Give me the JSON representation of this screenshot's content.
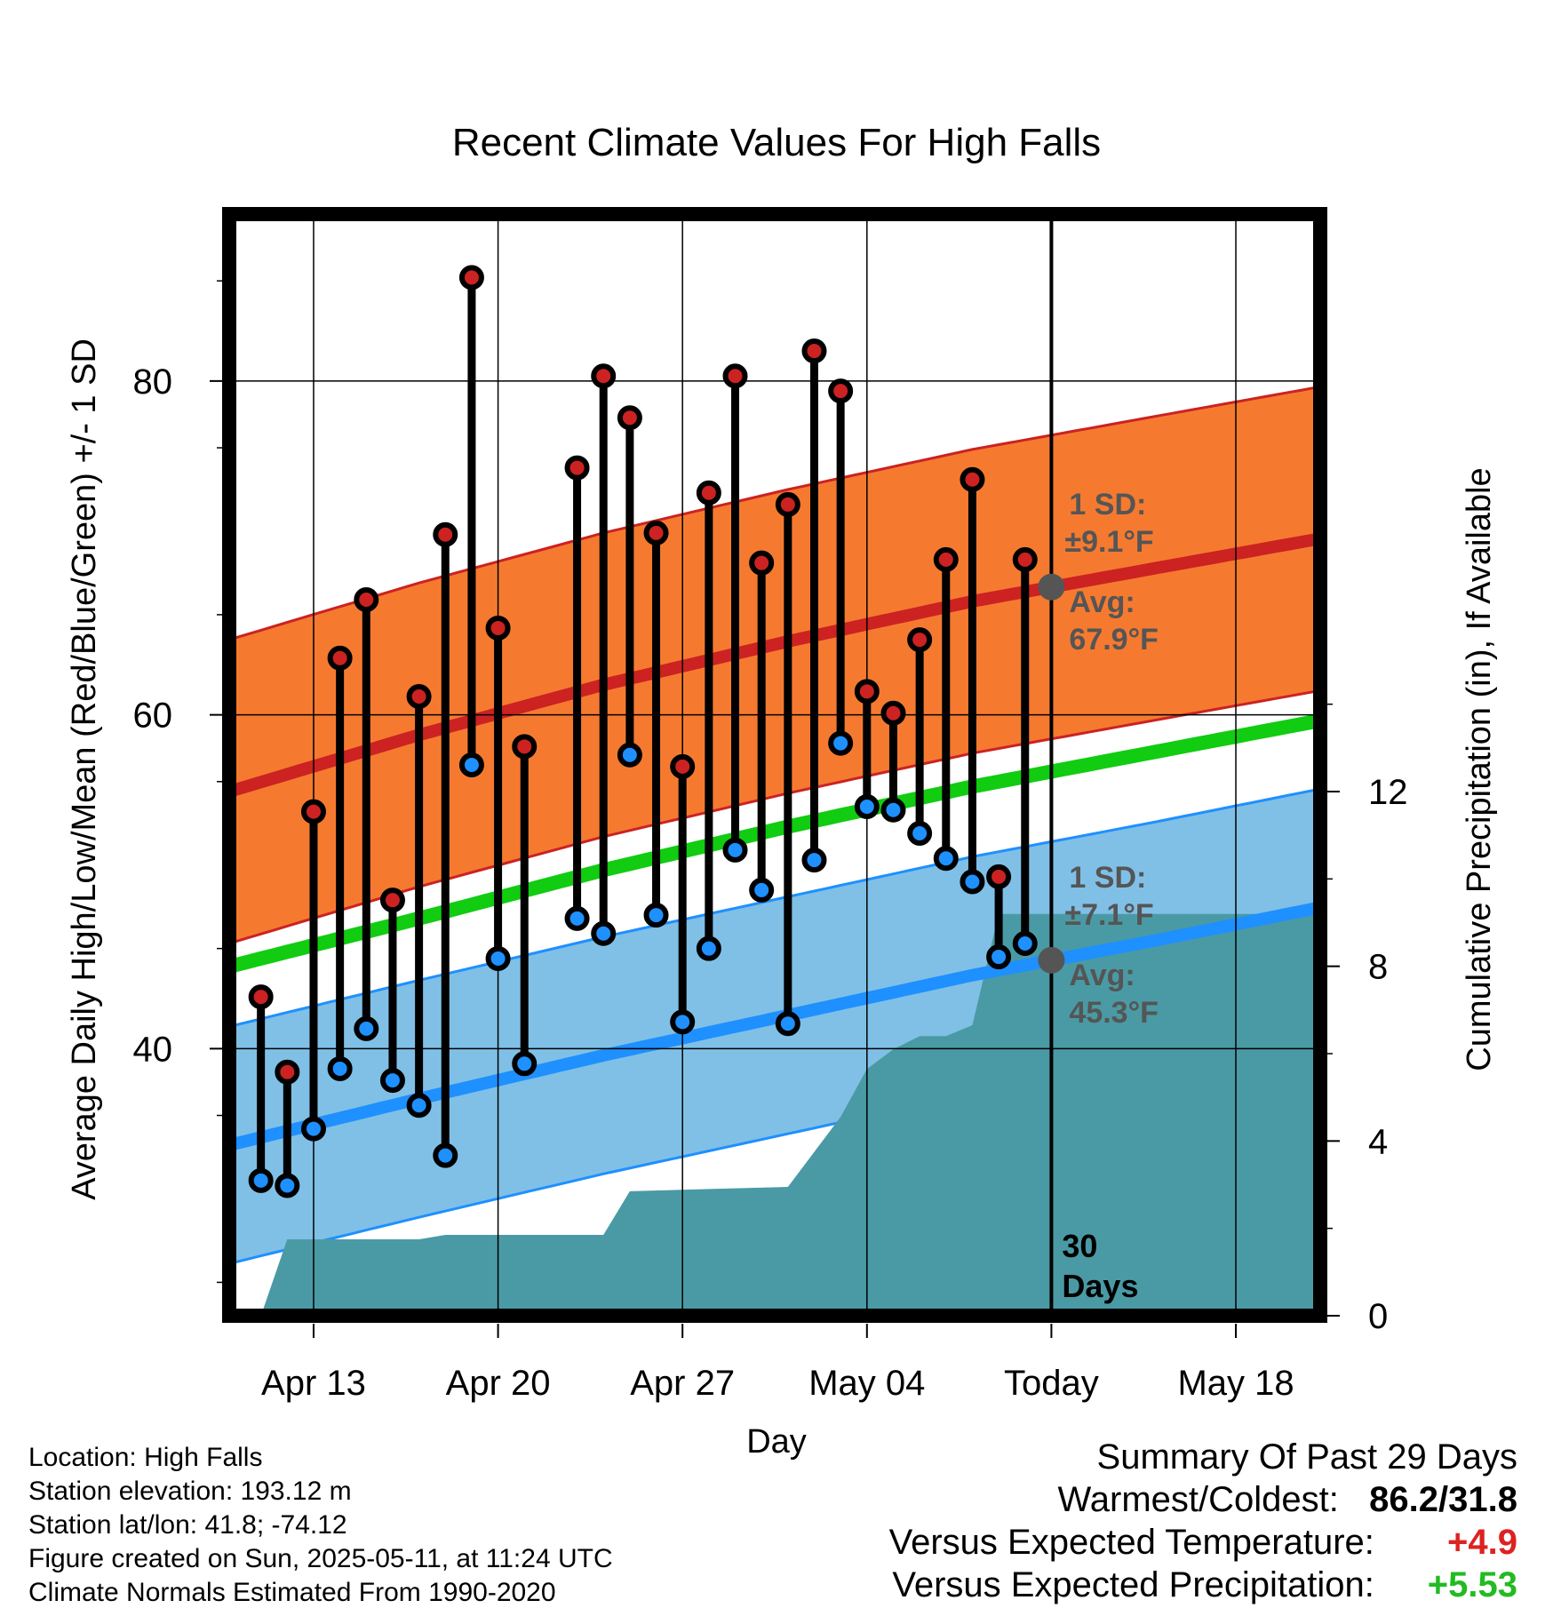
{
  "chart_data": {
    "type": "line",
    "title": "Recent Climate Values For High Falls",
    "xlabel": "Day",
    "ylabel": "Average Daily High/Low/Mean (Red/Blue/Green) +/- 1 SD",
    "y2label": "Cumulative Precipitation (in), If Available",
    "x_ticks": [
      "Apr 13",
      "Apr 20",
      "Apr 27",
      "May 04",
      "Today",
      "May 18"
    ],
    "x_range": [
      "2025-04-10",
      "2025-05-21"
    ],
    "ylim": [
      24,
      90
    ],
    "y_ticks": [
      40,
      60,
      80
    ],
    "y2lim": [
      0,
      20
    ],
    "y2_ticks": [
      0,
      4,
      8,
      12
    ],
    "grid": true,
    "today": "2025-05-11",
    "period_label": [
      "30",
      "Days"
    ],
    "normals": {
      "dates": [
        "2025-04-10",
        "2025-04-17",
        "2025-04-24",
        "2025-05-01",
        "2025-05-08",
        "2025-05-15",
        "2025-05-21"
      ],
      "high_mean": [
        55.5,
        58.8,
        61.8,
        64.4,
        66.8,
        68.8,
        70.5
      ],
      "high_sd": 9.1,
      "low_mean": [
        34.3,
        37.0,
        39.6,
        42.0,
        44.4,
        46.5,
        48.4
      ],
      "low_sd": 7.1,
      "daily_mean": [
        45.0,
        47.8,
        50.7,
        53.3,
        55.7,
        57.8,
        59.6
      ]
    },
    "annotations": {
      "high_sd": "±9.1°F",
      "high_avg": "67.9°F",
      "low_sd": "±7.1°F",
      "low_avg": "45.3°F",
      "sd_label": "1 SD:",
      "avg_label": "Avg:"
    },
    "series": [
      {
        "name": "High",
        "dates": [
          "2025-04-11",
          "2025-04-12",
          "2025-04-13",
          "2025-04-14",
          "2025-04-15",
          "2025-04-16",
          "2025-04-17",
          "2025-04-18",
          "2025-04-19",
          "2025-04-20",
          "2025-04-21",
          "2025-04-23",
          "2025-04-24",
          "2025-04-25",
          "2025-04-26",
          "2025-04-27",
          "2025-04-28",
          "2025-04-29",
          "2025-04-30",
          "2025-05-01",
          "2025-05-02",
          "2025-05-03",
          "2025-05-04",
          "2025-05-05",
          "2025-05-06",
          "2025-05-07",
          "2025-05-08",
          "2025-05-09",
          "2025-05-10"
        ],
        "values": [
          43.1,
          38.6,
          54.2,
          63.4,
          66.9,
          48.9,
          61.1,
          70.8,
          86.2,
          65.2,
          58.1,
          74.8,
          80.3,
          77.8,
          70.9,
          56.9,
          73.3,
          80.3,
          69.1,
          72.6,
          81.8,
          79.4,
          61.4,
          60.1,
          64.5,
          69.3,
          74.1,
          50.3,
          69.3
        ]
      },
      {
        "name": "Low",
        "dates": [
          "2025-04-11",
          "2025-04-12",
          "2025-04-13",
          "2025-04-14",
          "2025-04-15",
          "2025-04-16",
          "2025-04-17",
          "2025-04-18",
          "2025-04-19",
          "2025-04-20",
          "2025-04-21",
          "2025-04-23",
          "2025-04-24",
          "2025-04-25",
          "2025-04-26",
          "2025-04-27",
          "2025-04-28",
          "2025-04-29",
          "2025-04-30",
          "2025-05-01",
          "2025-05-02",
          "2025-05-03",
          "2025-05-04",
          "2025-05-05",
          "2025-05-06",
          "2025-05-07",
          "2025-05-08",
          "2025-05-09",
          "2025-05-10"
        ],
        "values": [
          32.1,
          31.8,
          35.2,
          38.8,
          41.2,
          38.1,
          36.6,
          33.6,
          57.0,
          45.4,
          39.1,
          47.8,
          46.9,
          57.6,
          48.0,
          41.6,
          46.0,
          51.9,
          49.5,
          41.5,
          51.3,
          58.3,
          54.5,
          54.3,
          52.9,
          51.4,
          50.0,
          45.5,
          46.3
        ]
      },
      {
        "name": "Cumulative Precipitation",
        "dates": [
          "2025-04-11",
          "2025-04-12",
          "2025-04-17",
          "2025-04-18",
          "2025-04-24",
          "2025-04-25",
          "2025-04-28",
          "2025-05-01",
          "2025-05-02",
          "2025-05-03",
          "2025-05-04",
          "2025-05-05",
          "2025-05-06",
          "2025-05-07",
          "2025-05-08",
          "2025-05-09",
          "2025-05-10",
          "2025-05-11",
          "2025-05-21"
        ],
        "values": [
          0.0,
          1.75,
          1.75,
          1.85,
          1.85,
          2.85,
          2.9,
          2.95,
          3.75,
          4.55,
          5.65,
          6.1,
          6.4,
          6.4,
          6.65,
          9.2,
          9.2,
          9.2,
          9.2
        ]
      }
    ]
  },
  "info": {
    "location": "Location: High Falls",
    "elevation": "Station elevation: 193.12 m",
    "latlon": "Station lat/lon: 41.8; -74.12",
    "created": "Figure created on Sun, 2025-05-11, at 11:24 UTC",
    "normals": "Climate Normals Estimated From 1990-2020"
  },
  "summary": {
    "title": "Summary Of Past 29 Days",
    "warm_cold_label": "Warmest/Coldest:",
    "warm_cold_value": "86.2/31.8",
    "temp_label": "Versus Expected Temperature:",
    "temp_value": "+4.9",
    "precip_label": "Versus Expected Precipitation:",
    "precip_value": "+5.53"
  },
  "colors": {
    "high_band": "#f57a30",
    "high_line": "#cc2222",
    "low_band": "#80c0e6",
    "low_line": "#1e90ff",
    "mean_line": "#11cc11",
    "precip": "#4a9aa5",
    "high_dot": "#cc2222",
    "low_dot": "#1e90ff",
    "annotation": "#555555",
    "temp_value": "#dd2222",
    "precip_value": "#22bb22"
  }
}
